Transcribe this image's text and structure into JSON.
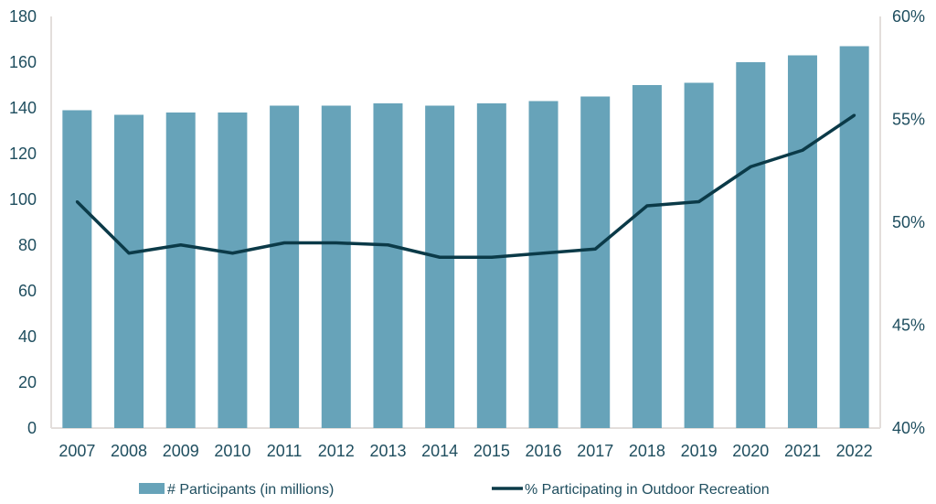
{
  "chart_data": {
    "type": "bar",
    "title": "",
    "categories": [
      "2007",
      "2008",
      "2009",
      "2010",
      "2011",
      "2012",
      "2013",
      "2014",
      "2015",
      "2016",
      "2017",
      "2018",
      "2019",
      "2020",
      "2021",
      "2022"
    ],
    "series": [
      {
        "name": "# Participants (in millions)",
        "type": "bar",
        "axis": "left",
        "color": "#67a3b9",
        "values": [
          139,
          137,
          138,
          138,
          141,
          141,
          142,
          141,
          142,
          143,
          145,
          150,
          151,
          160,
          163,
          167
        ]
      },
      {
        "name": "% Participating in Outdoor Recreation",
        "type": "line",
        "axis": "right",
        "color": "#0b3a48",
        "values": [
          51.0,
          48.5,
          48.9,
          48.5,
          49.0,
          49.0,
          48.9,
          48.3,
          48.3,
          48.5,
          48.7,
          50.8,
          51.0,
          52.7,
          53.5,
          55.2
        ]
      }
    ],
    "left_axis": {
      "ylim": [
        0,
        180
      ],
      "ticks": [
        "0",
        "20",
        "40",
        "60",
        "80",
        "100",
        "120",
        "140",
        "160",
        "180"
      ]
    },
    "right_axis": {
      "ylim": [
        40,
        60
      ],
      "ticks": [
        "40%",
        "45%",
        "50%",
        "55%",
        "60%"
      ]
    },
    "grid": false,
    "legend": "bottom"
  }
}
